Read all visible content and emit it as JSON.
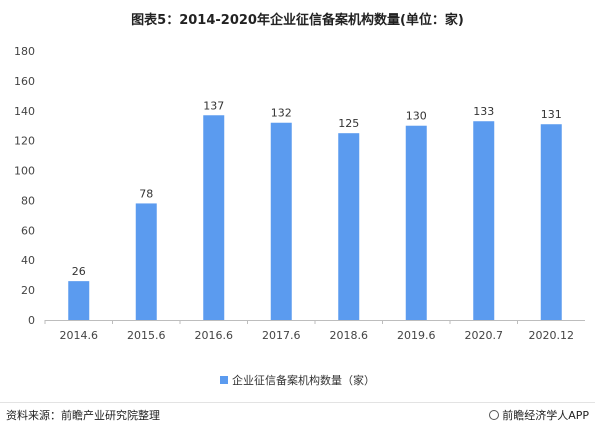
{
  "title": "图表5：2014-2020年企业征信备案机构数量(单位：家)",
  "chart_data": {
    "type": "bar",
    "categories": [
      "2014.6",
      "2015.6",
      "2016.6",
      "2017.6",
      "2018.6",
      "2019.6",
      "2020.7",
      "2020.12"
    ],
    "series": [
      {
        "name": "企业征信备案机构数量（家）",
        "values": [
          26,
          78,
          137,
          132,
          125,
          130,
          133,
          131
        ]
      }
    ],
    "ylim": [
      0,
      180
    ],
    "yticks": [
      0,
      20,
      40,
      60,
      80,
      100,
      120,
      140,
      160,
      180
    ],
    "data_labels": true,
    "grid": false,
    "legend": "bottom",
    "bar_color": "#5b9bef"
  },
  "footer": {
    "source": "资料来源：前瞻产业研究院整理",
    "brand": "前瞻经济学人APP"
  }
}
